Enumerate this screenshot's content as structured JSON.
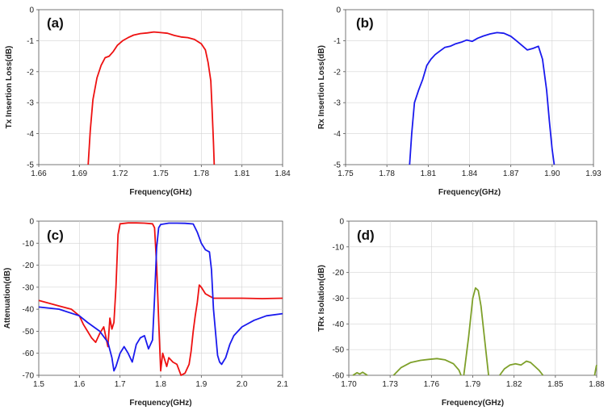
{
  "colors": {
    "red": "#ee1111",
    "blue": "#1a1aee",
    "green": "#7ea02a"
  },
  "chart_data": [
    {
      "id": "a",
      "type": "line",
      "tag": "(a)",
      "xlabel": "Frequency(GHz)",
      "ylabel": "Tx Insertion Loss(dB)",
      "xlim": [
        1.66,
        1.84
      ],
      "ylim": [
        -5,
        0
      ],
      "xticks": [
        "1.66",
        "1.69",
        "1.72",
        "1.75",
        "1.78",
        "1.81",
        "1.84"
      ],
      "yticks": [
        "0",
        "-1",
        "-2",
        "-3",
        "-4",
        "-5"
      ],
      "grid": true,
      "series": [
        {
          "color": "#ee1111",
          "x": [
            1.6965,
            1.698,
            1.7,
            1.703,
            1.706,
            1.709,
            1.712,
            1.715,
            1.718,
            1.722,
            1.726,
            1.73,
            1.735,
            1.74,
            1.745,
            1.75,
            1.755,
            1.76,
            1.765,
            1.77,
            1.775,
            1.78,
            1.783,
            1.785,
            1.787,
            1.788,
            1.789,
            1.7895
          ],
          "y": [
            -5.0,
            -3.9,
            -2.9,
            -2.2,
            -1.8,
            -1.55,
            -1.5,
            -1.35,
            -1.15,
            -1.0,
            -0.9,
            -0.82,
            -0.77,
            -0.75,
            -0.72,
            -0.74,
            -0.76,
            -0.83,
            -0.88,
            -0.9,
            -0.96,
            -1.1,
            -1.3,
            -1.7,
            -2.3,
            -3.3,
            -4.3,
            -5.0
          ]
        }
      ]
    },
    {
      "id": "b",
      "type": "line",
      "tag": "(b)",
      "xlabel": "Frequency(GHz)",
      "ylabel": "Rx Insertion Loss(dB)",
      "xlim": [
        1.75,
        1.93
      ],
      "ylim": [
        -5,
        0
      ],
      "xticks": [
        "1.75",
        "1.78",
        "1.81",
        "1.84",
        "1.87",
        "1.90",
        "1.93"
      ],
      "yticks": [
        "0",
        "-1",
        "-2",
        "-3",
        "-4",
        "-5"
      ],
      "grid": true,
      "series": [
        {
          "color": "#1a1aee",
          "x": [
            1.7965,
            1.798,
            1.8,
            1.803,
            1.806,
            1.809,
            1.812,
            1.815,
            1.818,
            1.822,
            1.826,
            1.83,
            1.834,
            1.838,
            1.842,
            1.846,
            1.85,
            1.855,
            1.86,
            1.865,
            1.87,
            1.874,
            1.878,
            1.882,
            1.886,
            1.89,
            1.893,
            1.896,
            1.898,
            1.9,
            1.9015
          ],
          "y": [
            -5.0,
            -4.0,
            -3.0,
            -2.6,
            -2.25,
            -1.8,
            -1.6,
            -1.45,
            -1.35,
            -1.22,
            -1.18,
            -1.1,
            -1.05,
            -0.98,
            -1.02,
            -0.92,
            -0.85,
            -0.78,
            -0.74,
            -0.76,
            -0.86,
            -1.0,
            -1.15,
            -1.3,
            -1.25,
            -1.18,
            -1.6,
            -2.6,
            -3.6,
            -4.5,
            -5.0
          ]
        }
      ]
    },
    {
      "id": "c",
      "type": "line",
      "tag": "(c)",
      "xlabel": "Frequency(GHz)",
      "ylabel": "Attenuation(dB)",
      "xlim": [
        1.5,
        2.1
      ],
      "ylim": [
        -70,
        0
      ],
      "xticks": [
        "1.5",
        "1.6",
        "1.7",
        "1.8",
        "1.9",
        "2.0",
        "2.1"
      ],
      "yticks": [
        "0",
        "-10",
        "-20",
        "-30",
        "-40",
        "-50",
        "-60",
        "-70"
      ],
      "grid": true,
      "series": [
        {
          "color": "#ee1111",
          "x": [
            1.5,
            1.52,
            1.55,
            1.58,
            1.6,
            1.61,
            1.62,
            1.63,
            1.64,
            1.65,
            1.66,
            1.67,
            1.675,
            1.68,
            1.685,
            1.69,
            1.695,
            1.7,
            1.72,
            1.74,
            1.76,
            1.78,
            1.785,
            1.79,
            1.795,
            1.8,
            1.805,
            1.81,
            1.815,
            1.82,
            1.83,
            1.84,
            1.85,
            1.86,
            1.87,
            1.875,
            1.88,
            1.885,
            1.89,
            1.895,
            1.9,
            1.91,
            1.92,
            1.93,
            1.95,
            2.0,
            2.05,
            2.1
          ],
          "y": [
            -36,
            -37,
            -38.5,
            -40,
            -43,
            -47,
            -50,
            -53,
            -55,
            -51,
            -48,
            -57,
            -44,
            -49,
            -46,
            -30,
            -6,
            -1.2,
            -0.8,
            -0.8,
            -0.9,
            -1.2,
            -3,
            -20,
            -45,
            -68,
            -60,
            -63,
            -66,
            -62,
            -64,
            -65,
            -70,
            -69,
            -65,
            -59,
            -50,
            -43,
            -37,
            -29,
            -30,
            -33,
            -34,
            -35,
            -35,
            -35,
            -35.2,
            -35
          ]
        },
        {
          "color": "#1a1aee",
          "x": [
            1.5,
            1.55,
            1.6,
            1.62,
            1.65,
            1.67,
            1.68,
            1.685,
            1.69,
            1.7,
            1.71,
            1.72,
            1.73,
            1.74,
            1.75,
            1.76,
            1.77,
            1.78,
            1.785,
            1.79,
            1.795,
            1.8,
            1.82,
            1.84,
            1.86,
            1.88,
            1.89,
            1.9,
            1.91,
            1.92,
            1.925,
            1.93,
            1.94,
            1.945,
            1.95,
            1.96,
            1.97,
            1.98,
            2.0,
            2.03,
            2.06,
            2.1
          ],
          "y": [
            -39,
            -40,
            -43,
            -46,
            -50,
            -55,
            -62,
            -68,
            -66,
            -60,
            -57,
            -60,
            -64,
            -56,
            -53,
            -52,
            -58,
            -54,
            -35,
            -12,
            -3,
            -1.5,
            -0.9,
            -0.9,
            -1.0,
            -1.3,
            -5,
            -10,
            -13,
            -14,
            -22,
            -40,
            -61,
            -64,
            -65,
            -62,
            -56,
            -52,
            -48,
            -45,
            -43,
            -42
          ]
        }
      ]
    },
    {
      "id": "d",
      "type": "line",
      "tag": "(d)",
      "xlabel": "Frequency(GHz)",
      "ylabel": "TRx Isolation(dB)",
      "xlim": [
        1.7,
        1.88
      ],
      "ylim": [
        -60,
        0
      ],
      "xticks": [
        "1.70",
        "1.73",
        "1.76",
        "1.79",
        "1.82",
        "1.85",
        "1.88"
      ],
      "yticks": [
        "0",
        "-10",
        "-20",
        "-30",
        "-40",
        "-50",
        "-60"
      ],
      "grid": true,
      "series": [
        {
          "color": "#7ea02a",
          "x": [
            1.703,
            1.706,
            1.708,
            1.71,
            1.712,
            1.7135
          ],
          "y": [
            -60,
            -59,
            -59.5,
            -58.8,
            -59.5,
            -60
          ]
        },
        {
          "color": "#7ea02a",
          "x": [
            1.7325,
            1.738,
            1.745,
            1.752,
            1.758,
            1.764,
            1.77,
            1.776,
            1.78,
            1.7815
          ],
          "y": [
            -60,
            -57,
            -55,
            -54.2,
            -53.8,
            -53.5,
            -54,
            -55.5,
            -58,
            -60
          ]
        },
        {
          "color": "#7ea02a",
          "x": [
            1.7835,
            1.787,
            1.79,
            1.792,
            1.794,
            1.796,
            1.799,
            1.8015
          ],
          "y": [
            -60,
            -45,
            -30,
            -26,
            -27,
            -33,
            -48,
            -60
          ]
        },
        {
          "color": "#7ea02a",
          "x": [
            1.8095,
            1.813,
            1.817,
            1.821,
            1.825,
            1.829,
            1.832,
            1.835,
            1.838,
            1.841
          ],
          "y": [
            -60,
            -57.5,
            -56,
            -55.5,
            -56,
            -54.5,
            -55,
            -56.5,
            -58,
            -60
          ]
        },
        {
          "color": "#7ea02a",
          "x": [
            1.8785,
            1.8792,
            1.8797,
            1.88
          ],
          "y": [
            -60,
            -58,
            -56.5,
            -56
          ]
        }
      ]
    }
  ]
}
